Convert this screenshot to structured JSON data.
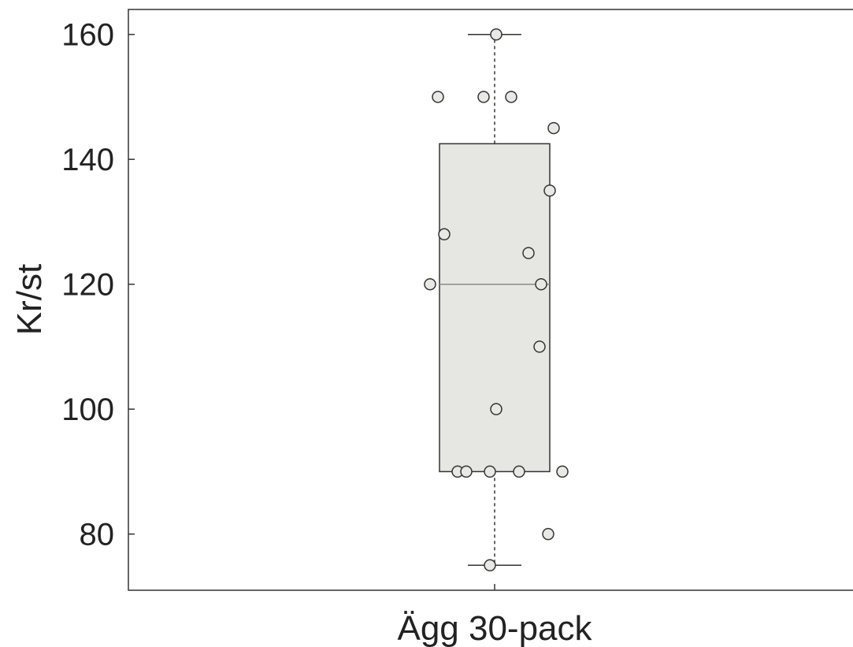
{
  "chart_data": {
    "type": "box",
    "categories": [
      "Ägg 30-pack"
    ],
    "xlabel": "",
    "ylabel": "Kr/st",
    "ylim": [
      71,
      164
    ],
    "yticks": [
      80,
      100,
      120,
      140,
      160
    ],
    "grid": false,
    "box": {
      "whisker_low": 75,
      "q1": 90,
      "median": 120,
      "q3": 142.5,
      "whisker_high": 160
    },
    "points": [
      160,
      150,
      150,
      150,
      145,
      135,
      128,
      125,
      120,
      120,
      110,
      100,
      90,
      90,
      90,
      90,
      90,
      80,
      75
    ],
    "colors": {
      "box_fill": "#e6e6e3",
      "stroke": "#333333",
      "median": "#8a8a8a",
      "point_fill": "#e8e8e5"
    }
  }
}
